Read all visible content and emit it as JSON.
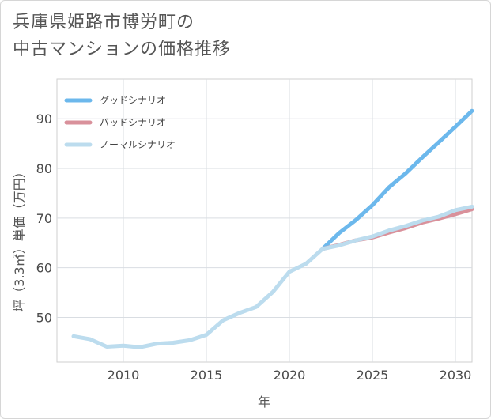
{
  "title_lines": [
    "兵庫県姫路市博労町の",
    "中古マンションの価格推移"
  ],
  "chart_data": {
    "type": "line",
    "title": "兵庫県姫路市博労町の中古マンションの価格推移",
    "xlabel": "年",
    "ylabel": "坪（3.3㎡）単価（万円）",
    "xlim": [
      2006,
      2031
    ],
    "ylim": [
      41,
      98
    ],
    "xticks": [
      2010,
      2015,
      2020,
      2025,
      2030
    ],
    "yticks": [
      50,
      60,
      70,
      80,
      90
    ],
    "grid": true,
    "legend_position": "top-left",
    "series": [
      {
        "name": "グッドシナリオ",
        "color": "#6cb8ec",
        "x": [
          2022,
          2023,
          2024,
          2025,
          2026,
          2027,
          2028,
          2029,
          2030,
          2031
        ],
        "values": [
          63.8,
          67.0,
          69.6,
          72.6,
          76.2,
          79.0,
          82.2,
          85.3,
          88.4,
          91.6
        ]
      },
      {
        "name": "バッドシナリオ",
        "color": "#d9919b",
        "x": [
          2022,
          2023,
          2024,
          2025,
          2026,
          2027,
          2028,
          2029,
          2030,
          2031
        ],
        "values": [
          63.8,
          64.6,
          65.5,
          66.1,
          67.1,
          68.0,
          69.1,
          69.9,
          70.8,
          71.8
        ]
      },
      {
        "name": "ノーマルシナリオ",
        "color": "#bcdcee",
        "x": [
          2007,
          2008,
          2009,
          2010,
          2011,
          2012,
          2013,
          2014,
          2015,
          2016,
          2017,
          2018,
          2019,
          2020,
          2021,
          2022,
          2023,
          2024,
          2025,
          2026,
          2027,
          2028,
          2029,
          2030,
          2031
        ],
        "values": [
          46.2,
          45.6,
          44.1,
          44.3,
          44.0,
          44.7,
          44.9,
          45.4,
          46.5,
          49.4,
          50.9,
          52.1,
          55.1,
          59.2,
          60.8,
          63.8,
          64.5,
          65.5,
          66.3,
          67.5,
          68.4,
          69.5,
          70.3,
          71.6,
          72.3
        ]
      }
    ]
  }
}
